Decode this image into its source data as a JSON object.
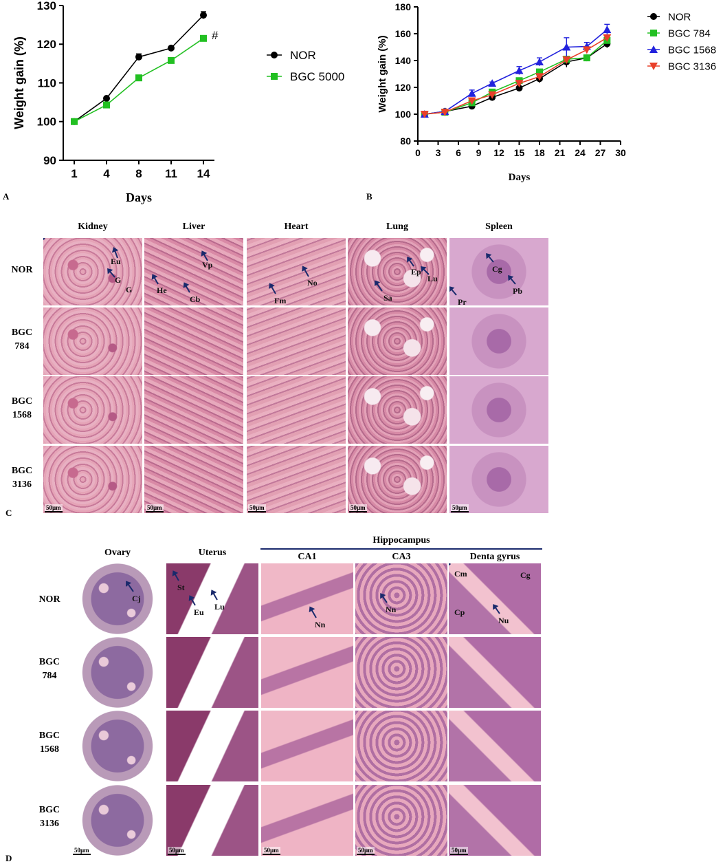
{
  "chart_data": [
    {
      "type": "line",
      "panel": "A",
      "x": [
        1,
        4,
        8,
        11,
        14
      ],
      "xlabel": "Days",
      "ylabel": "Weight gain (%)",
      "ylim": [
        90,
        130
      ],
      "yticks": [
        "90",
        "100",
        "110",
        "120",
        "130"
      ],
      "xticks": [
        "1",
        "4",
        "8",
        "11",
        "14"
      ],
      "annotation": "#",
      "legend_position": "right",
      "series": [
        {
          "name": "NOR",
          "values": [
            100,
            106,
            116.7,
            119,
            127.5
          ],
          "err": [
            0.3,
            0.4,
            0.8,
            0.4,
            0.9
          ],
          "color": "#000000",
          "marker": "circle"
        },
        {
          "name": "BGC  5000",
          "values": [
            100,
            104.3,
            111.3,
            115.8,
            121.5
          ],
          "err": [
            0.3,
            0.4,
            0.3,
            0.7,
            0.3
          ],
          "color": "#22c022",
          "marker": "square"
        }
      ]
    },
    {
      "type": "line",
      "panel": "B",
      "x": [
        1,
        4,
        8,
        11,
        15,
        18,
        22,
        25,
        28
      ],
      "xlabel": "Days",
      "ylabel": "Weight gain (%)",
      "ylim": [
        80,
        180
      ],
      "xlim": [
        0,
        30
      ],
      "yticks": [
        "80",
        "100",
        "120",
        "140",
        "160",
        "180"
      ],
      "xticks": [
        "0",
        "3",
        "6",
        "9",
        "12",
        "15",
        "18",
        "21",
        "24",
        "27",
        "30"
      ],
      "legend_position": "right",
      "series": [
        {
          "name": "NOR",
          "values": [
            100,
            102,
            106,
            112.5,
            119.5,
            126.5,
            139,
            142,
            152.5
          ],
          "err": [
            0.5,
            0.5,
            1,
            1,
            1,
            3,
            4,
            1,
            3
          ],
          "color": "#000000",
          "marker": "circle"
        },
        {
          "name": "BGC 784",
          "values": [
            100,
            101.5,
            108.5,
            116.5,
            125,
            131.5,
            141,
            142,
            155
          ],
          "err": [
            0.5,
            0.5,
            1,
            1,
            1,
            1.5,
            1.5,
            1,
            2
          ],
          "color": "#22c022",
          "marker": "square"
        },
        {
          "name": "BGC 1568",
          "values": [
            100,
            102,
            115.5,
            123,
            132.5,
            139,
            150,
            150.5,
            163
          ],
          "err": [
            0.5,
            0.5,
            2.5,
            1,
            3,
            3,
            7,
            3,
            4
          ],
          "color": "#2222dd",
          "marker": "triangle-up"
        },
        {
          "name": "BGC 3136",
          "values": [
            100,
            101.5,
            110,
            114.5,
            123,
            128,
            140.5,
            148,
            157
          ],
          "err": [
            0.5,
            0.5,
            1,
            1,
            1,
            1.5,
            2,
            1,
            2
          ],
          "color": "#e8402a",
          "marker": "triangle-down"
        }
      ]
    }
  ],
  "labels": {
    "panel_a": "A",
    "panel_b": "B",
    "panel_c": "C",
    "panel_d": "D"
  },
  "panel_c": {
    "columns": [
      "Kidney",
      "Liver",
      "Heart",
      "Lung",
      "Spleen"
    ],
    "rows": [
      "NOR",
      "BGC\n784",
      "BGC\n1568",
      "BGC\n3136"
    ],
    "scale_bar": "50µm",
    "annotations": {
      "kidney": [
        "Eu",
        "G",
        "G"
      ],
      "liver": [
        "Vp",
        "He",
        "Cb"
      ],
      "heart": [
        "No",
        "Fm"
      ],
      "lung": [
        "Ep",
        "Lu",
        "Sa"
      ],
      "spleen": [
        "Cg",
        "Pb",
        "Pr"
      ]
    }
  },
  "panel_d": {
    "group_header": "Hippocampus",
    "columns": [
      "Ovary",
      "Uterus",
      "CA1",
      "CA3",
      "Denta gyrus"
    ],
    "rows": [
      "NOR",
      "BGC\n784",
      "BGC\n1568",
      "BGC\n3136"
    ],
    "scale_bar": "50µm",
    "annotations": {
      "ovary": [
        "Cj"
      ],
      "uterus": [
        "St",
        "Eu",
        "Lu"
      ],
      "ca1": [
        "Nn"
      ],
      "ca3": [
        "Nn"
      ],
      "dentate": [
        "Cm",
        "Cg",
        "Cp",
        "Nu"
      ]
    }
  }
}
